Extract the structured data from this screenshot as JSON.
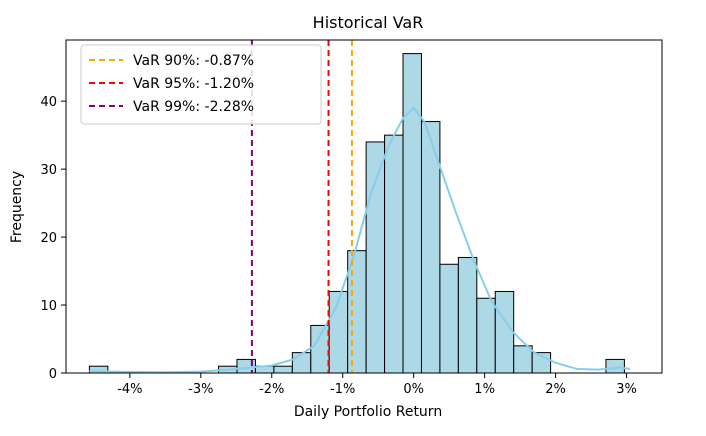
{
  "chart_data": {
    "type": "bar",
    "title": "Historical VaR",
    "xlabel": "Daily Portfolio Return",
    "ylabel": "Frequency",
    "xlim": [
      -4.9,
      3.5
    ],
    "ylim": [
      0,
      49
    ],
    "bin_width": 0.26,
    "bins": [
      {
        "x0": -4.57,
        "count": 1
      },
      {
        "x0": -2.75,
        "count": 1
      },
      {
        "x0": -2.49,
        "count": 2
      },
      {
        "x0": -2.23,
        "count": 1
      },
      {
        "x0": -1.97,
        "count": 1
      },
      {
        "x0": -1.71,
        "count": 3
      },
      {
        "x0": -1.45,
        "count": 7
      },
      {
        "x0": -1.19,
        "count": 12
      },
      {
        "x0": -0.93,
        "count": 18
      },
      {
        "x0": -0.67,
        "count": 34
      },
      {
        "x0": -0.41,
        "count": 35
      },
      {
        "x0": -0.15,
        "count": 47
      },
      {
        "x0": 0.11,
        "count": 37
      },
      {
        "x0": 0.37,
        "count": 16
      },
      {
        "x0": 0.63,
        "count": 17
      },
      {
        "x0": 0.89,
        "count": 11
      },
      {
        "x0": 1.15,
        "count": 12
      },
      {
        "x0": 1.41,
        "count": 4
      },
      {
        "x0": 1.67,
        "count": 3
      },
      {
        "x0": 2.71,
        "count": 2
      }
    ],
    "kde": [
      [
        -4.57,
        0.3
      ],
      [
        -4.0,
        0.15
      ],
      [
        -3.5,
        0.1
      ],
      [
        -3.0,
        0.2
      ],
      [
        -2.6,
        0.5
      ],
      [
        -2.3,
        0.8
      ],
      [
        -2.0,
        1.1
      ],
      [
        -1.7,
        2.0
      ],
      [
        -1.4,
        4.0
      ],
      [
        -1.1,
        9.5
      ],
      [
        -0.85,
        17.0
      ],
      [
        -0.6,
        26.5
      ],
      [
        -0.35,
        33.5
      ],
      [
        -0.15,
        37.5
      ],
      [
        0.0,
        39.0
      ],
      [
        0.15,
        37.0
      ],
      [
        0.35,
        31.0
      ],
      [
        0.6,
        23.5
      ],
      [
        0.85,
        16.5
      ],
      [
        1.1,
        10.5
      ],
      [
        1.4,
        6.0
      ],
      [
        1.7,
        3.0
      ],
      [
        2.0,
        1.5
      ],
      [
        2.3,
        0.6
      ],
      [
        2.6,
        0.5
      ],
      [
        2.9,
        0.8
      ],
      [
        3.05,
        0.6
      ]
    ],
    "x_ticks": [
      {
        "value": -4,
        "label": "-4%"
      },
      {
        "value": -3,
        "label": "-3%"
      },
      {
        "value": -2,
        "label": "-2%"
      },
      {
        "value": -1,
        "label": "-1%"
      },
      {
        "value": 0,
        "label": "0%"
      },
      {
        "value": 1,
        "label": "1%"
      },
      {
        "value": 2,
        "label": "2%"
      },
      {
        "value": 3,
        "label": "3%"
      }
    ],
    "y_ticks": [
      {
        "value": 0,
        "label": "0"
      },
      {
        "value": 10,
        "label": "10"
      },
      {
        "value": 20,
        "label": "20"
      },
      {
        "value": 30,
        "label": "30"
      },
      {
        "value": 40,
        "label": "40"
      }
    ],
    "var_lines": [
      {
        "label": "VaR 90%: -0.87%",
        "x": -0.87,
        "color": "#ffa500"
      },
      {
        "label": "VaR 95%: -1.20%",
        "x": -1.2,
        "color": "#ff0000"
      },
      {
        "label": "VaR 99%: -2.28%",
        "x": -2.28,
        "color": "#800080"
      }
    ],
    "legend_position": "top-left",
    "colors": {
      "bar_fill": "#add8e6",
      "bar_edge": "#000000",
      "kde": "#87ceeb"
    }
  }
}
